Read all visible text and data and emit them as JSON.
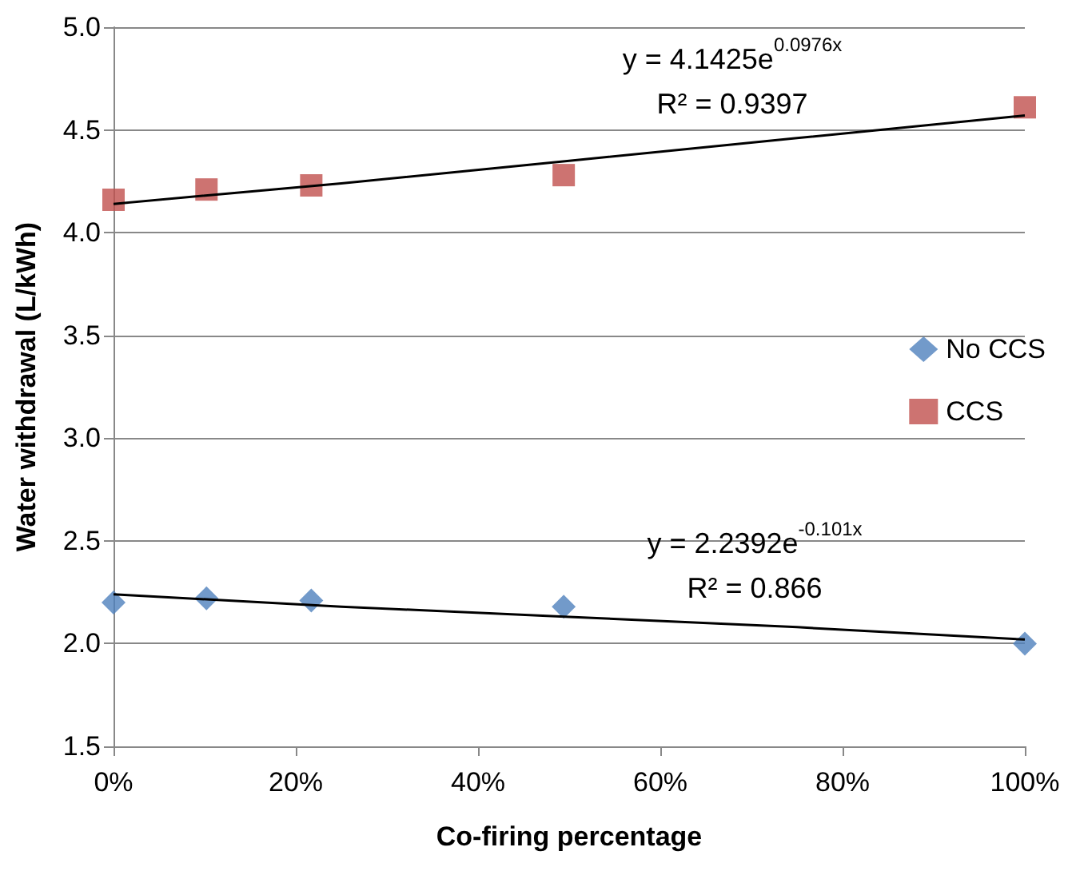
{
  "chart_data": {
    "type": "scatter",
    "xlabel": "Co-firing percentage",
    "ylabel": "Water withdrawal (L/kWh)",
    "xlim": [
      0,
      100
    ],
    "xticks": [
      {
        "value": 0,
        "label": "0%"
      },
      {
        "value": 20,
        "label": "20%"
      },
      {
        "value": 40,
        "label": "40%"
      },
      {
        "value": 60,
        "label": "60%"
      },
      {
        "value": 80,
        "label": "80%"
      },
      {
        "value": 100,
        "label": "100%"
      }
    ],
    "ylim": [
      1.5,
      5.0
    ],
    "yticks": [
      {
        "value": 1.5,
        "label": "1.5"
      },
      {
        "value": 2.0,
        "label": "2.0"
      },
      {
        "value": 2.5,
        "label": "2.5"
      },
      {
        "value": 3.0,
        "label": "3.0"
      },
      {
        "value": 3.5,
        "label": "3.5"
      },
      {
        "value": 4.0,
        "label": "4.0"
      },
      {
        "value": 4.5,
        "label": "4.5"
      },
      {
        "value": 5.0,
        "label": "5.0"
      }
    ],
    "grid": "y",
    "legend": "right",
    "annotations": [
      "y = 4.1425e$^{0.0976x}$",
      "R² = 0.9397",
      "y = 2.2392e$^{-0.101x}$",
      "R² = 0.866"
    ],
    "series": [
      {
        "name": "No CCS",
        "marker": "diamond",
        "color": "#4f81bd",
        "x": [
          0,
          10.2,
          21.7,
          49.4,
          100
        ],
        "values": [
          2.2,
          2.22,
          2.21,
          2.18,
          2.0
        ]
      },
      {
        "name": "CCS",
        "marker": "square",
        "color": "#c0504d",
        "x": [
          0,
          10.2,
          21.7,
          49.4,
          100
        ],
        "values": [
          4.16,
          4.21,
          4.23,
          4.28,
          4.61
        ]
      },
      {
        "type": "line",
        "marker": "none",
        "color": "#000000",
        "x": [
          0,
          25,
          50,
          75,
          100
        ],
        "values": [
          4.14,
          4.24,
          4.35,
          4.46,
          4.57
        ]
      },
      {
        "type": "line",
        "marker": "none",
        "color": "#000000",
        "x": [
          0,
          25,
          50,
          75,
          100
        ],
        "values": [
          2.24,
          2.18,
          2.13,
          2.08,
          2.02
        ]
      }
    ]
  }
}
